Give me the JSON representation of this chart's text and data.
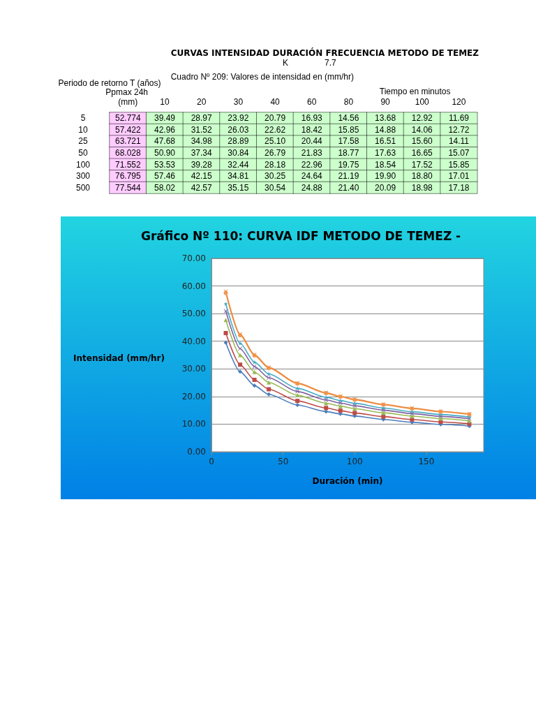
{
  "chart_data": [
    {
      "type": "heatmap",
      "title": "CURVAS INTENSIDAD DURACIÓN FRECUENCIA METODO DE TEMEZ",
      "subtitle": "Cuadro Nº 209: Valores de intensidad en (mm/hr)",
      "annotations": [
        "K",
        "7.7"
      ],
      "ylabel": "Periodo de retorno T (años)",
      "xlabel": "Tiempo en minutos",
      "categories": [
        "Ppmax 24h (mm)",
        "10",
        "20",
        "30",
        "40",
        "60",
        "80",
        "90",
        "100",
        "120"
      ],
      "y_categories": [
        "5",
        "10",
        "25",
        "50",
        "100",
        "300",
        "500"
      ],
      "cells": [
        [
          52.774,
          39.49,
          28.97,
          23.92,
          20.79,
          16.93,
          14.56,
          13.68,
          12.92,
          11.69
        ],
        [
          57.422,
          42.96,
          31.52,
          26.03,
          22.62,
          18.42,
          15.85,
          14.88,
          14.06,
          12.72
        ],
        [
          63.721,
          47.68,
          34.98,
          28.89,
          25.1,
          20.44,
          17.58,
          16.51,
          15.6,
          14.11
        ],
        [
          68.028,
          50.9,
          37.34,
          30.84,
          26.79,
          21.83,
          18.77,
          17.63,
          16.65,
          15.07
        ],
        [
          71.552,
          53.53,
          39.28,
          32.44,
          28.18,
          22.96,
          19.75,
          18.54,
          17.52,
          15.85
        ],
        [
          76.795,
          57.46,
          42.15,
          34.81,
          30.25,
          24.64,
          21.19,
          19.9,
          18.8,
          17.01
        ],
        [
          77.544,
          58.02,
          42.57,
          35.15,
          30.54,
          24.88,
          21.4,
          20.09,
          18.98,
          17.18
        ]
      ],
      "cell_labels": [
        [
          "52.774",
          "39.49",
          "28.97",
          "23.92",
          "20.79",
          "16.93",
          "14.56",
          "13.68",
          "12.92",
          "11.69"
        ],
        [
          "57.422",
          "42.96",
          "31.52",
          "26.03",
          "22.62",
          "18.42",
          "15.85",
          "14.88",
          "14.06",
          "12.72"
        ],
        [
          "63.721",
          "47.68",
          "34.98",
          "28.89",
          "25.10",
          "20.44",
          "17.58",
          "16.51",
          "15.60",
          "14.11"
        ],
        [
          "68.028",
          "50.90",
          "37.34",
          "30.84",
          "26.79",
          "21.83",
          "18.77",
          "17.63",
          "16.65",
          "15.07"
        ],
        [
          "71.552",
          "53.53",
          "39.28",
          "32.44",
          "28.18",
          "22.96",
          "19.75",
          "18.54",
          "17.52",
          "15.85"
        ],
        [
          "76.795",
          "57.46",
          "42.15",
          "34.81",
          "30.25",
          "24.64",
          "21.19",
          "19.90",
          "18.80",
          "17.01"
        ],
        [
          "77.544",
          "58.02",
          "42.57",
          "35.15",
          "30.54",
          "24.88",
          "21.40",
          "20.09",
          "18.98",
          "17.18"
        ]
      ]
    },
    {
      "type": "line",
      "title": "Gráfico Nº 110: CURVA IDF METODO DE TEMEZ -",
      "xlabel": "Duración (min)",
      "ylabel": "Intensidad (mm/hr)",
      "x": [
        10,
        20,
        30,
        40,
        60,
        80,
        90,
        100,
        120,
        140,
        160,
        180
      ],
      "xlim": [
        0,
        190
      ],
      "xticks": [
        0,
        50,
        100,
        150
      ],
      "ylim": [
        0,
        70
      ],
      "yticks": [
        {
          "value": 0,
          "label": "0.00"
        },
        {
          "value": 10,
          "label": "10.00"
        },
        {
          "value": 20,
          "label": "20.00"
        },
        {
          "value": 30,
          "label": "30.00"
        },
        {
          "value": 40,
          "label": "40.00"
        },
        {
          "value": 50,
          "label": "50.00"
        },
        {
          "value": 60,
          "label": "60.00"
        },
        {
          "value": 70,
          "label": "70.00"
        }
      ],
      "grid": "y",
      "line_style": "solid",
      "series": [
        {
          "color": "#4a7ebb",
          "marker": "diamond",
          "values": [
            39.49,
            28.97,
            23.92,
            20.79,
            16.93,
            14.56,
            13.68,
            12.92,
            11.69,
            10.7,
            9.9,
            9.3
          ]
        },
        {
          "color": "#be4b48",
          "marker": "square",
          "values": [
            42.96,
            31.52,
            26.03,
            22.62,
            18.42,
            15.85,
            14.88,
            14.06,
            12.72,
            11.7,
            10.8,
            10.1
          ]
        },
        {
          "color": "#98b954",
          "marker": "triangle",
          "values": [
            47.68,
            34.98,
            28.89,
            25.1,
            20.44,
            17.58,
            16.51,
            15.6,
            14.11,
            12.9,
            12.0,
            11.2
          ]
        },
        {
          "color": "#7d60a0",
          "marker": "cross",
          "values": [
            50.9,
            37.34,
            30.84,
            26.79,
            21.83,
            18.77,
            17.63,
            16.65,
            15.07,
            13.8,
            12.8,
            12.0
          ]
        },
        {
          "color": "#46aac5",
          "marker": "star",
          "values": [
            53.53,
            39.28,
            32.44,
            28.18,
            22.96,
            19.75,
            18.54,
            17.52,
            15.85,
            14.5,
            13.5,
            12.6
          ]
        },
        {
          "color": "#f59d56",
          "marker": "circle",
          "values": [
            57.46,
            42.15,
            34.81,
            30.25,
            24.64,
            21.19,
            19.9,
            18.8,
            17.01,
            15.6,
            14.5,
            13.5
          ]
        },
        {
          "color": "#e9883e",
          "marker": "cross",
          "values": [
            58.02,
            42.57,
            35.15,
            30.54,
            24.88,
            21.4,
            20.09,
            18.98,
            17.18,
            15.8,
            14.6,
            13.7
          ]
        }
      ]
    }
  ]
}
